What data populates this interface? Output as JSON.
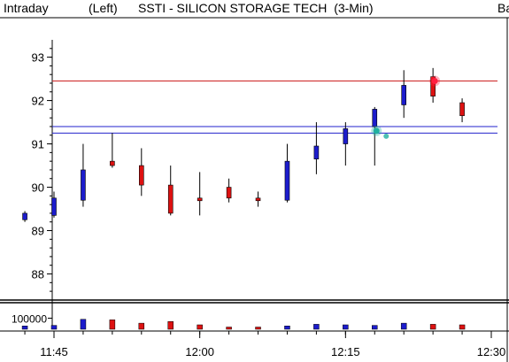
{
  "header": {
    "mode": "Intraday",
    "scale": "(Left)",
    "title": "SSTI - SILICON STORAGE TECH  (3-Min)",
    "corner": "Ba"
  },
  "colors": {
    "up": "#1c1ccc",
    "down": "#dd1111",
    "resistance": "#cc2222",
    "support": "#2222cc",
    "marker_red": "#ff2040",
    "marker_teal": "#20b0a0"
  },
  "chart_data": {
    "type": "candlestick",
    "title": "SSTI - SILICON STORAGE TECH  (3-Min)",
    "price_axis": {
      "ticks": [
        93,
        92,
        91,
        90,
        89,
        88
      ],
      "ylim": [
        87.5,
        93.4
      ]
    },
    "volume_axis": {
      "ticks": [
        "100000"
      ],
      "ylim": [
        0,
        200000
      ]
    },
    "time_axis": {
      "ticks": [
        "11:45",
        "12:00",
        "12:15",
        "12:30"
      ]
    },
    "candles": [
      {
        "time": "11:42",
        "open": 89.25,
        "high": 89.45,
        "low": 89.2,
        "close": 89.4,
        "volume": 30000
      },
      {
        "time": "11:45",
        "open": 89.35,
        "high": 89.9,
        "low": 89.3,
        "close": 89.75,
        "volume": 35000
      },
      {
        "time": "11:48",
        "open": 89.7,
        "high": 91.0,
        "low": 89.55,
        "close": 90.4,
        "volume": 90000
      },
      {
        "time": "11:51",
        "open": 90.6,
        "high": 91.25,
        "low": 90.45,
        "close": 90.5,
        "volume": 85000
      },
      {
        "time": "11:54",
        "open": 90.5,
        "high": 90.9,
        "low": 89.8,
        "close": 90.05,
        "volume": 55000
      },
      {
        "time": "11:57",
        "open": 90.05,
        "high": 90.5,
        "low": 89.35,
        "close": 89.4,
        "volume": 70000
      },
      {
        "time": "12:00",
        "open": 89.75,
        "high": 90.35,
        "low": 89.35,
        "close": 89.7,
        "volume": 40000
      },
      {
        "time": "12:03",
        "open": 90.0,
        "high": 90.2,
        "low": 89.65,
        "close": 89.75,
        "volume": 20000
      },
      {
        "time": "12:06",
        "open": 89.75,
        "high": 89.9,
        "low": 89.55,
        "close": 89.7,
        "volume": 20000
      },
      {
        "time": "12:09",
        "open": 89.7,
        "high": 91.0,
        "low": 89.65,
        "close": 90.6,
        "volume": 30000
      },
      {
        "time": "12:12",
        "open": 90.65,
        "high": 91.5,
        "low": 90.3,
        "close": 90.95,
        "volume": 45000
      },
      {
        "time": "12:15",
        "open": 91.0,
        "high": 91.5,
        "low": 90.5,
        "close": 91.35,
        "volume": 40000
      },
      {
        "time": "12:18",
        "open": 91.4,
        "high": 91.85,
        "low": 90.5,
        "close": 91.8,
        "volume": 35000
      },
      {
        "time": "12:21",
        "open": 91.9,
        "high": 92.7,
        "low": 91.6,
        "close": 92.35,
        "volume": 55000
      },
      {
        "time": "12:24",
        "open": 92.55,
        "high": 92.75,
        "low": 91.95,
        "close": 92.1,
        "volume": 45000
      },
      {
        "time": "12:27",
        "open": 91.95,
        "high": 92.05,
        "low": 91.5,
        "close": 91.65,
        "volume": 40000
      }
    ],
    "lines": [
      {
        "kind": "resistance",
        "price": 92.45
      },
      {
        "kind": "support",
        "price": 91.4
      },
      {
        "kind": "support",
        "price": 91.25
      }
    ],
    "markers": [
      {
        "kind": "red",
        "time": "12:24",
        "price": 92.45
      },
      {
        "kind": "teal",
        "time": "12:18",
        "price": 91.3
      }
    ]
  }
}
